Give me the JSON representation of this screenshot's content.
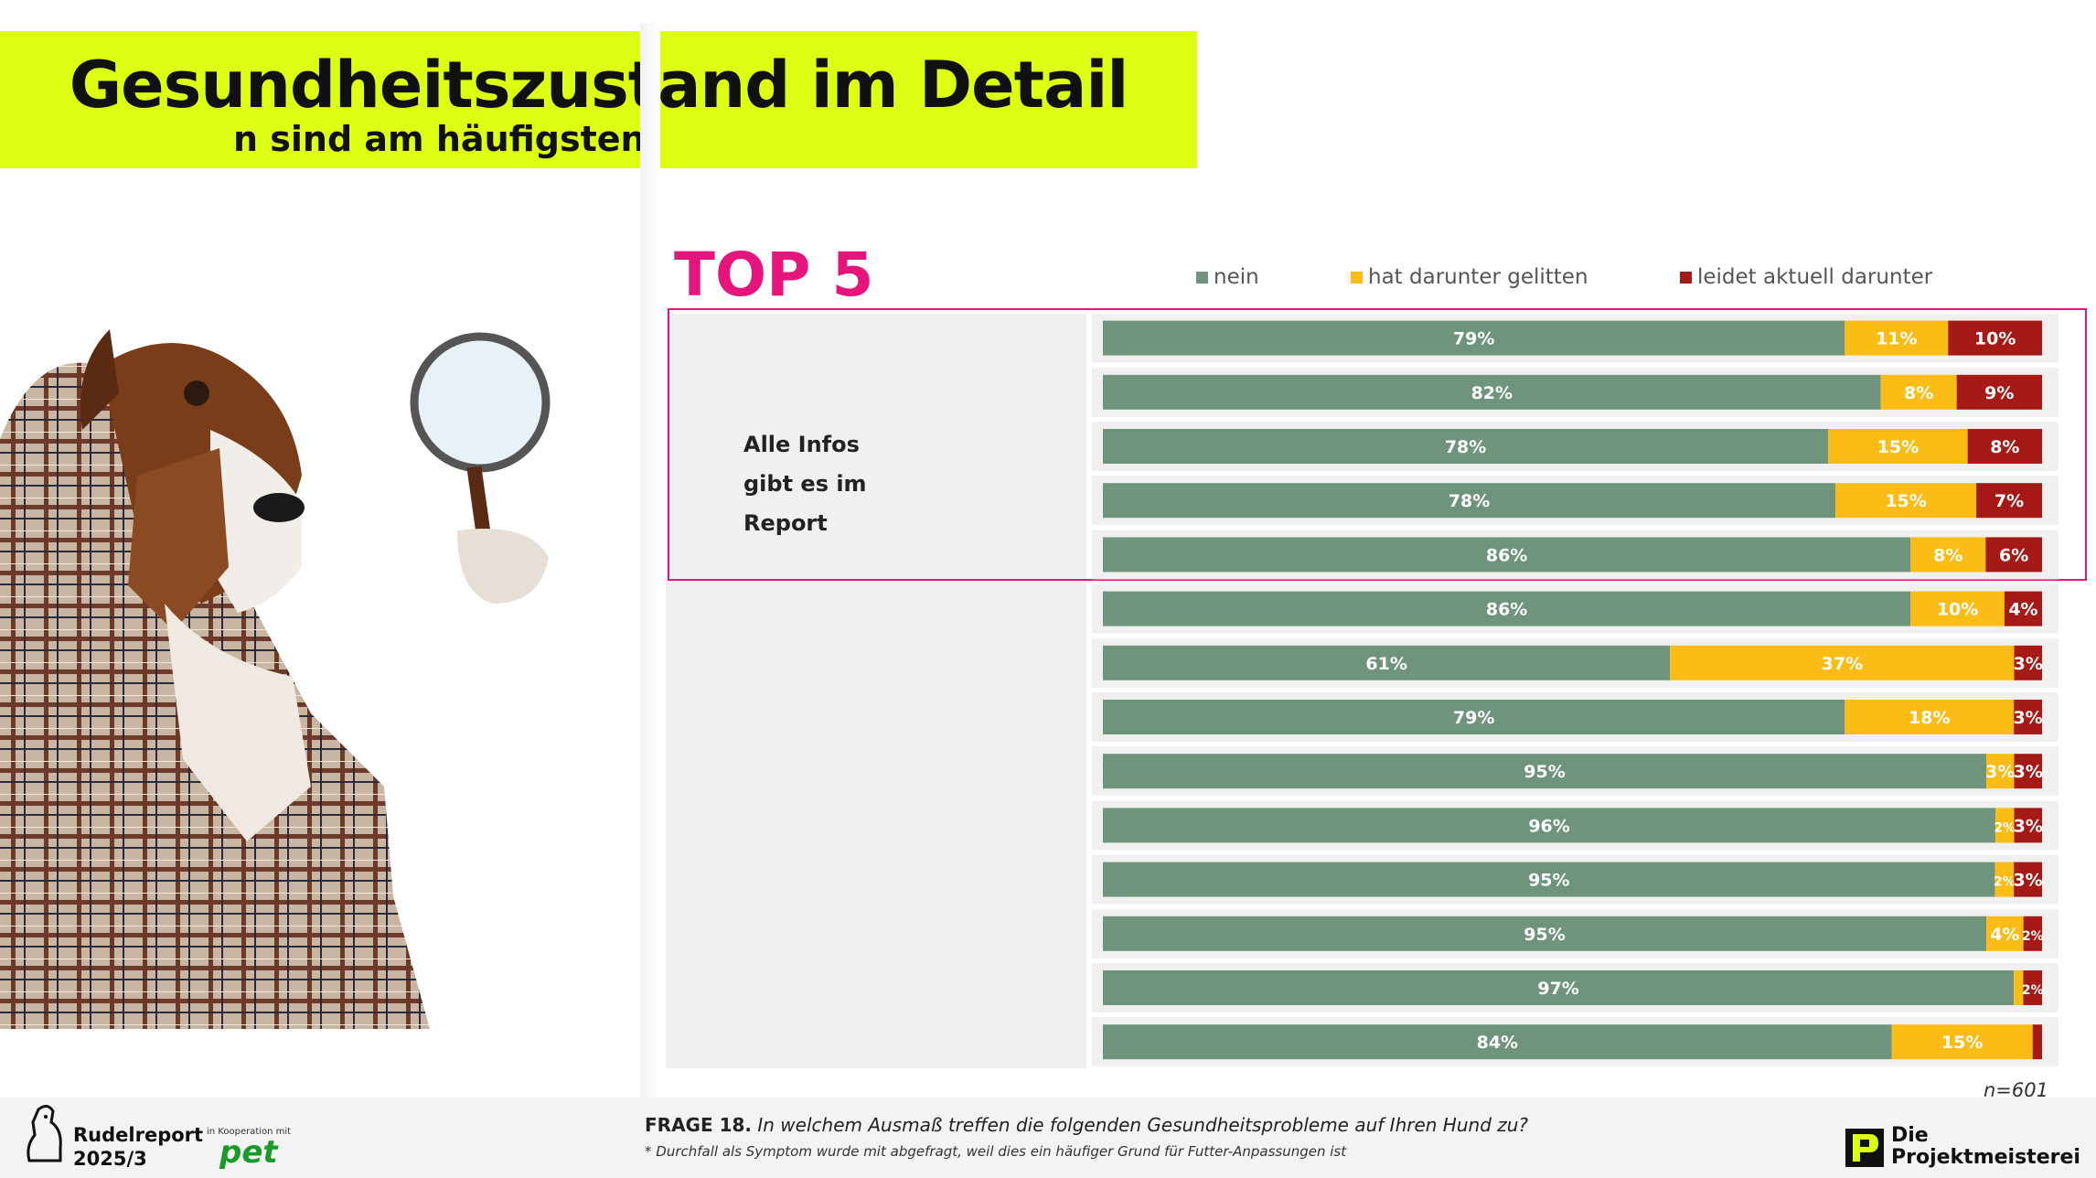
{
  "header": {
    "title": "Gesundheitszustand im Detail",
    "subtitle": "n sind am häufigsten"
  },
  "top5_label": "TOP 5",
  "info_lines": [
    "Alle Infos",
    "gibt es im",
    "Report"
  ],
  "legend": [
    {
      "label": "nein",
      "color": "#6e957b"
    },
    {
      "label": "hat darunter gelitten",
      "color": "#fbbc15"
    },
    {
      "label": "leidet aktuell darunter",
      "color": "#a51a16"
    }
  ],
  "colors": {
    "accent": "#dcff14",
    "highlight": "#e5157d",
    "nein": "#6e957b",
    "gelitten": "#fbbc15",
    "aktuell": "#a51a16"
  },
  "chart_data": {
    "type": "bar",
    "orientation": "horizontal",
    "stacked": true,
    "categories": [
      "",
      "",
      "",
      "",
      "",
      "",
      "",
      "",
      "",
      "",
      "",
      "",
      "",
      ""
    ],
    "series": [
      {
        "name": "nein",
        "values": [
          79,
          82,
          78,
          78,
          86,
          86,
          61,
          79,
          95,
          96,
          95,
          95,
          97,
          84
        ],
        "labels": [
          "79%",
          "82%",
          "78%",
          "78%",
          "86%",
          "86%",
          "61%",
          "79%",
          "95%",
          "96%",
          "95%",
          "95%",
          "97%",
          "84%"
        ]
      },
      {
        "name": "hat darunter gelitten",
        "values": [
          11,
          8,
          15,
          15,
          8,
          10,
          37,
          18,
          3,
          2,
          2,
          4,
          1,
          15
        ],
        "labels": [
          "11%",
          "8%",
          "15%",
          "15%",
          "8%",
          "10%",
          "37%",
          "18%",
          "3%",
          "2%",
          "2%",
          "4%",
          "",
          "15%"
        ]
      },
      {
        "name": "leidet aktuell darunter",
        "values": [
          10,
          9,
          8,
          7,
          6,
          4,
          3,
          3,
          3,
          3,
          3,
          2,
          2,
          1
        ],
        "labels": [
          "10%",
          "9%",
          "8%",
          "7%",
          "6%",
          "4%",
          "3%",
          "3%",
          "3%",
          "3%",
          "3%",
          "2%",
          "2%",
          ""
        ]
      }
    ],
    "xlim": [
      0,
      100
    ],
    "legend_position": "top",
    "highlighted_top": 5
  },
  "footer": {
    "n_label": "n=601",
    "question_prefix": "FRAGE 18.",
    "question_text": "In welchem Ausmaß treffen die folgenden Gesundheitsprobleme auf Ihren Hund zu?",
    "note": "* Durchfall als Symptom wurde mit abgefragt, weil dies ein häufiger Grund für Futter-Anpassungen ist",
    "brand_line1": "Rudelreport",
    "brand_line2": "2025/3",
    "koop_label": "in Kooperation mit",
    "partner": "pet",
    "company_line1": "Die",
    "company_line2": "Projektmeisterei"
  }
}
